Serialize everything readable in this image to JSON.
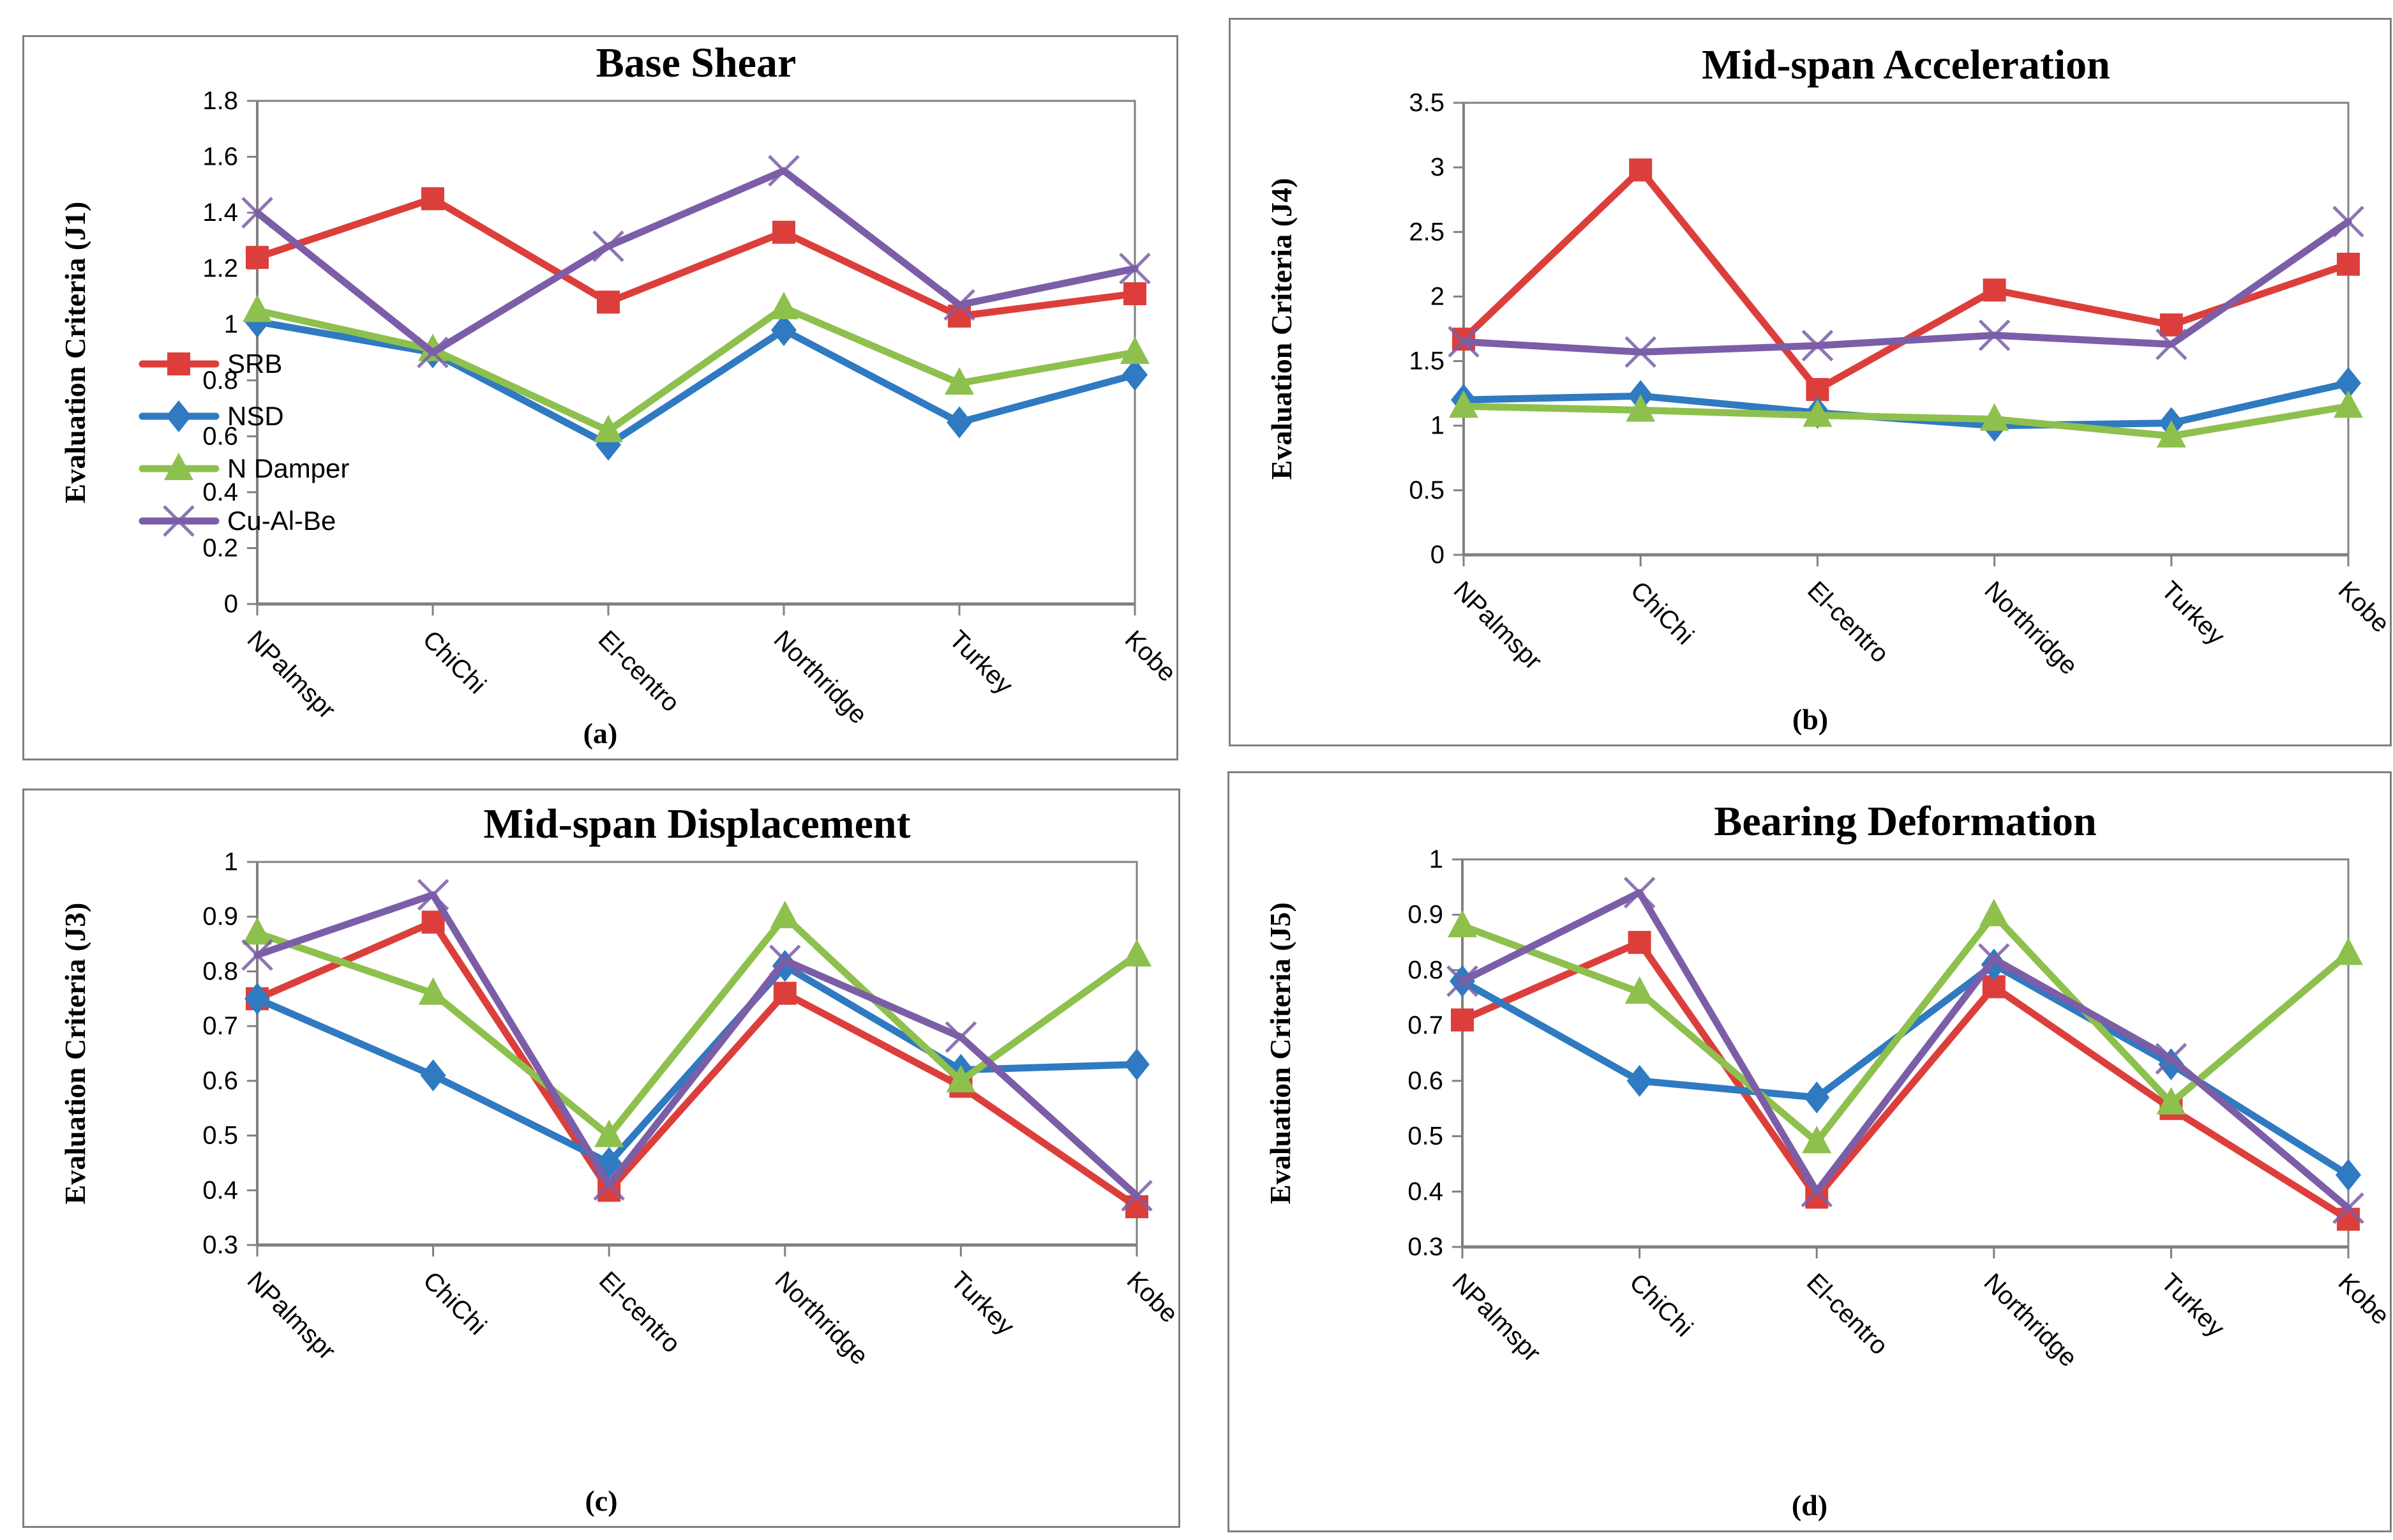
{
  "page": {
    "background": "#ffffff",
    "border_color": "#7f7f7f",
    "axis_color": "#808080",
    "text_color": "#000000"
  },
  "series_styles": [
    {
      "name": "SRB",
      "color": "#DC3F3B",
      "marker": "square"
    },
    {
      "name": "NSD",
      "color": "#2F7AC1",
      "marker": "diamond"
    },
    {
      "name": "N Damper",
      "color": "#8EC04E",
      "marker": "triangle"
    },
    {
      "name": "Cu-Al-Be",
      "color": "#7B5EA7",
      "marker": "x"
    }
  ],
  "legend": {
    "items": [
      "SRB",
      "NSD",
      "N Damper",
      "Cu-Al-Be"
    ],
    "position": "inside-left-chart-a"
  },
  "chart_data": [
    {
      "id": "a",
      "type": "line",
      "title": "Base Shear",
      "ylabel": "Evaluation Criteria (J1)",
      "caption": "(a)",
      "ymin": 0,
      "ymax": 1.8,
      "ystep": 0.2,
      "grid": false,
      "legend": true,
      "categories": [
        "NPalmspr",
        "ChiChi",
        "El-centro",
        "Northridge",
        "Turkey",
        "Kobe"
      ],
      "series": [
        {
          "name": "SRB",
          "values": [
            1.24,
            1.45,
            1.08,
            1.33,
            1.03,
            1.11
          ]
        },
        {
          "name": "NSD",
          "values": [
            1.01,
            0.9,
            0.57,
            0.98,
            0.65,
            0.82
          ]
        },
        {
          "name": "N Damper",
          "values": [
            1.05,
            0.91,
            0.62,
            1.06,
            0.79,
            0.9
          ]
        },
        {
          "name": "Cu-Al-Be",
          "values": [
            1.4,
            0.9,
            1.28,
            1.55,
            1.07,
            1.2
          ]
        }
      ]
    },
    {
      "id": "b",
      "type": "line",
      "title": "Mid-span Acceleration",
      "ylabel": "Evaluation Criteria (J4)",
      "caption": "(b)",
      "ymin": 0,
      "ymax": 3.5,
      "ystep": 0.5,
      "grid": false,
      "legend": false,
      "categories": [
        "NPalmspr",
        "ChiChi",
        "El-centro",
        "Northridge",
        "Turkey",
        "Kobe"
      ],
      "series": [
        {
          "name": "SRB",
          "values": [
            1.67,
            2.98,
            1.28,
            2.05,
            1.78,
            2.25
          ]
        },
        {
          "name": "NSD",
          "values": [
            1.2,
            1.23,
            1.1,
            1.0,
            1.02,
            1.33
          ]
        },
        {
          "name": "N Damper",
          "values": [
            1.15,
            1.12,
            1.08,
            1.05,
            0.92,
            1.15
          ]
        },
        {
          "name": "Cu-Al-Be",
          "values": [
            1.65,
            1.57,
            1.62,
            1.7,
            1.63,
            2.58
          ]
        }
      ]
    },
    {
      "id": "c",
      "type": "line",
      "title": "Mid-span Displacement",
      "ylabel": "Evaluation Criteria (J3)",
      "caption": "(c)",
      "ymin": 0.3,
      "ymax": 1.0,
      "ystep": 0.1,
      "grid": false,
      "legend": false,
      "categories": [
        "NPalmspr",
        "ChiChi",
        "El-centro",
        "Northridge",
        "Turkey",
        "Kobe"
      ],
      "series": [
        {
          "name": "SRB",
          "values": [
            0.75,
            0.89,
            0.4,
            0.76,
            0.59,
            0.37
          ]
        },
        {
          "name": "NSD",
          "values": [
            0.75,
            0.61,
            0.45,
            0.81,
            0.62,
            0.63
          ]
        },
        {
          "name": "N Damper",
          "values": [
            0.87,
            0.76,
            0.5,
            0.9,
            0.6,
            0.83
          ]
        },
        {
          "name": "Cu-Al-Be",
          "values": [
            0.83,
            0.94,
            0.41,
            0.82,
            0.68,
            0.39
          ]
        }
      ]
    },
    {
      "id": "d",
      "type": "line",
      "title": "Bearing Deformation",
      "ylabel": "Evaluation Criteria (J5)",
      "caption": "(d)",
      "ymin": 0.3,
      "ymax": 1.0,
      "ystep": 0.1,
      "grid": false,
      "legend": false,
      "categories": [
        "NPalmspr",
        "ChiChi",
        "El-centro",
        "Northridge",
        "Turkey",
        "Kobe"
      ],
      "series": [
        {
          "name": "SRB",
          "values": [
            0.71,
            0.85,
            0.39,
            0.77,
            0.55,
            0.35
          ]
        },
        {
          "name": "NSD",
          "values": [
            0.78,
            0.6,
            0.57,
            0.81,
            0.63,
            0.43
          ]
        },
        {
          "name": "N Damper",
          "values": [
            0.88,
            0.76,
            0.49,
            0.9,
            0.56,
            0.83
          ]
        },
        {
          "name": "Cu-Al-Be",
          "values": [
            0.78,
            0.94,
            0.4,
            0.82,
            0.64,
            0.37
          ]
        }
      ]
    }
  ]
}
